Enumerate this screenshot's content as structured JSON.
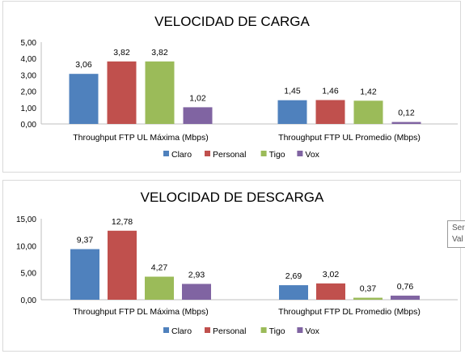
{
  "charts": {
    "colors": [
      "#4f81bd",
      "#c0504d",
      "#9bbb59",
      "#8064a2"
    ],
    "chart_data": [
      {
        "type": "bar",
        "title": "VELOCIDAD DE CARGA",
        "categories": [
          "Throughput FTP UL Máxima (Mbps)",
          "Throughput FTP UL Promedio (Mbps)"
        ],
        "series": [
          {
            "name": "Claro",
            "values": [
              3.06,
              1.45
            ],
            "labels": [
              "3,06",
              "1,45"
            ]
          },
          {
            "name": "Personal",
            "values": [
              3.82,
              1.46
            ],
            "labels": [
              "3,82",
              "1,46"
            ]
          },
          {
            "name": "Tigo",
            "values": [
              3.82,
              1.42
            ],
            "labels": [
              "3,82",
              "1,42"
            ]
          },
          {
            "name": "Vox",
            "values": [
              1.02,
              0.12
            ],
            "labels": [
              "1,02",
              "0,12"
            ]
          }
        ],
        "ylim": [
          0,
          5
        ],
        "yticks": [
          "0,00",
          "1,00",
          "2,00",
          "3,00",
          "4,00",
          "5,00"
        ],
        "legend_position": "bottom",
        "grid": false
      },
      {
        "type": "bar",
        "title": "VELOCIDAD DE DESCARGA",
        "categories": [
          "Throughput FTP DL Máxima (Mbps)",
          "Throughput FTP DL Promedio (Mbps)"
        ],
        "series": [
          {
            "name": "Claro",
            "values": [
              9.37,
              2.69
            ],
            "labels": [
              "9,37",
              "2,69"
            ]
          },
          {
            "name": "Personal",
            "values": [
              12.78,
              3.02
            ],
            "labels": [
              "12,78",
              "3,02"
            ]
          },
          {
            "name": "Tigo",
            "values": [
              4.27,
              0.37
            ],
            "labels": [
              "4,27",
              "0,37"
            ]
          },
          {
            "name": "Vox",
            "values": [
              2.93,
              0.76
            ],
            "labels": [
              "2,93",
              "0,76"
            ]
          }
        ],
        "ylim": [
          0,
          15
        ],
        "yticks": [
          "0,00",
          "5,00",
          "10,00",
          "15,00"
        ],
        "legend_position": "bottom",
        "grid": false
      }
    ]
  },
  "tooltip": {
    "line1": "Ser",
    "line2": "Val"
  }
}
